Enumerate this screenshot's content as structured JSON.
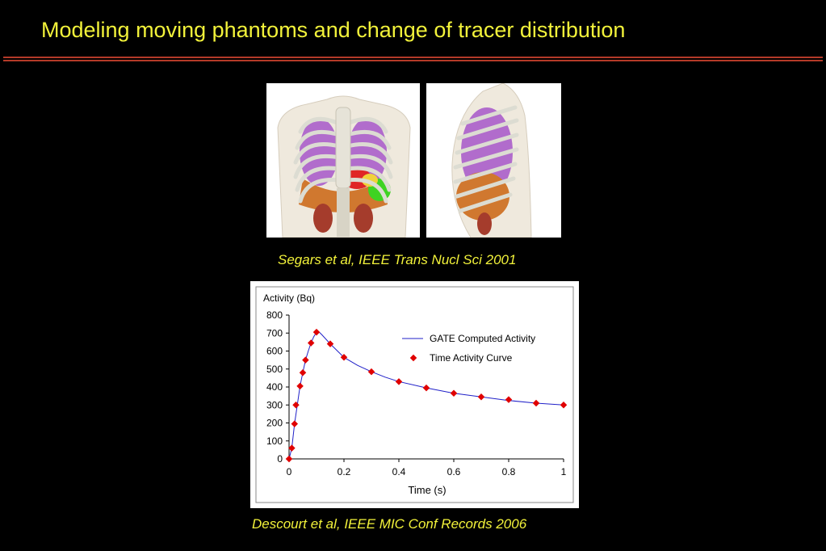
{
  "slide": {
    "title": "Modeling moving phantoms and change of tracer distribution",
    "caption_phantom": "Segars et al, IEEE Trans Nucl Sci 2001",
    "caption_chart": "Descourt et al, IEEE MIC Conf Records 2006",
    "title_color": "#f2f23a",
    "rule_color": "#b43a28"
  },
  "images": {
    "front": "phantom-front-view",
    "side": "phantom-side-view"
  },
  "chart_data": {
    "type": "line",
    "ylabel": "Activity (Bq)",
    "xlabel": "Time (s)",
    "xlim": [
      0,
      1
    ],
    "ylim": [
      0,
      800
    ],
    "x_ticks": [
      "0",
      "0.2",
      "0.4",
      "0.6",
      "0.8",
      "1"
    ],
    "x_tick_values": [
      0,
      0.2,
      0.4,
      0.6,
      0.8,
      1
    ],
    "y_ticks": [
      "800",
      "700",
      "600",
      "500",
      "400",
      "300",
      "200",
      "100",
      "0"
    ],
    "y_tick_values": [
      800,
      700,
      600,
      500,
      400,
      300,
      200,
      100,
      0
    ],
    "legend_position": "top-right",
    "series": [
      {
        "name": "GATE Computed Activity",
        "style": "line",
        "color": "#2020c8",
        "x": [
          0,
          0.01,
          0.02,
          0.03,
          0.04,
          0.05,
          0.06,
          0.07,
          0.08,
          0.09,
          0.1,
          0.11,
          0.12,
          0.15,
          0.2,
          0.25,
          0.3,
          0.35,
          0.4,
          0.5,
          0.6,
          0.7,
          0.8,
          0.9,
          1.0
        ],
        "y": [
          0,
          60,
          195,
          300,
          405,
          480,
          550,
          600,
          645,
          680,
          705,
          705,
          690,
          640,
          565,
          520,
          485,
          455,
          430,
          395,
          365,
          345,
          325,
          310,
          300
        ]
      },
      {
        "name": "Time Activity Curve",
        "style": "markers",
        "color": "#e00000",
        "x": [
          0,
          0.01,
          0.02,
          0.025,
          0.04,
          0.05,
          0.06,
          0.08,
          0.1,
          0.15,
          0.2,
          0.3,
          0.4,
          0.5,
          0.6,
          0.7,
          0.8,
          0.9,
          1.0
        ],
        "y": [
          0,
          60,
          195,
          300,
          405,
          480,
          550,
          645,
          705,
          640,
          565,
          485,
          430,
          395,
          365,
          345,
          330,
          310,
          300
        ]
      }
    ]
  }
}
